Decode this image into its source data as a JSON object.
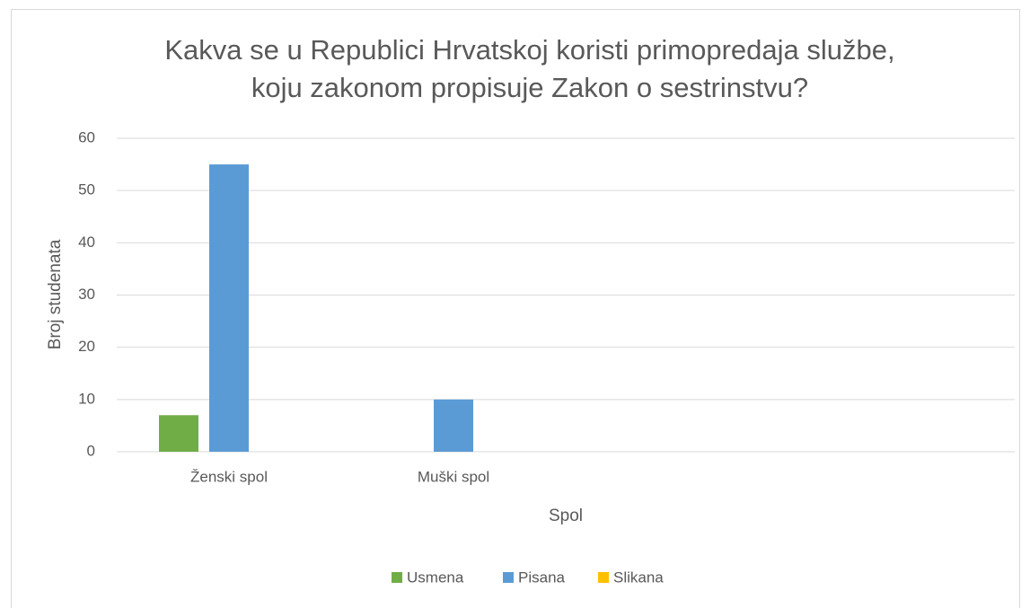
{
  "chart_data": {
    "type": "bar",
    "title": [
      "Kakva se u Republici Hrvatskoj koristi primopredaja službe,",
      "koju zakonom propisuje Zakon o sestrinstvu?"
    ],
    "x_label": "Spol",
    "y_label": "Broj studenata",
    "categories": [
      "Ženski spol",
      "Muški spol",
      null,
      null
    ],
    "series": [
      {
        "name": "Usmena",
        "color": "#70ad47",
        "values": [
          7,
          0,
          null,
          null
        ]
      },
      {
        "name": "Pisana",
        "color": "#5b9bd5",
        "values": [
          55,
          10,
          null,
          null
        ]
      },
      {
        "name": "Slikana",
        "color": "#ffc000",
        "values": [
          0,
          0,
          null,
          null
        ]
      }
    ],
    "ylim": [
      0,
      60
    ],
    "yticks": [
      0,
      10,
      20,
      30,
      40,
      50,
      60
    ],
    "grid": true,
    "legend": "bottom"
  }
}
